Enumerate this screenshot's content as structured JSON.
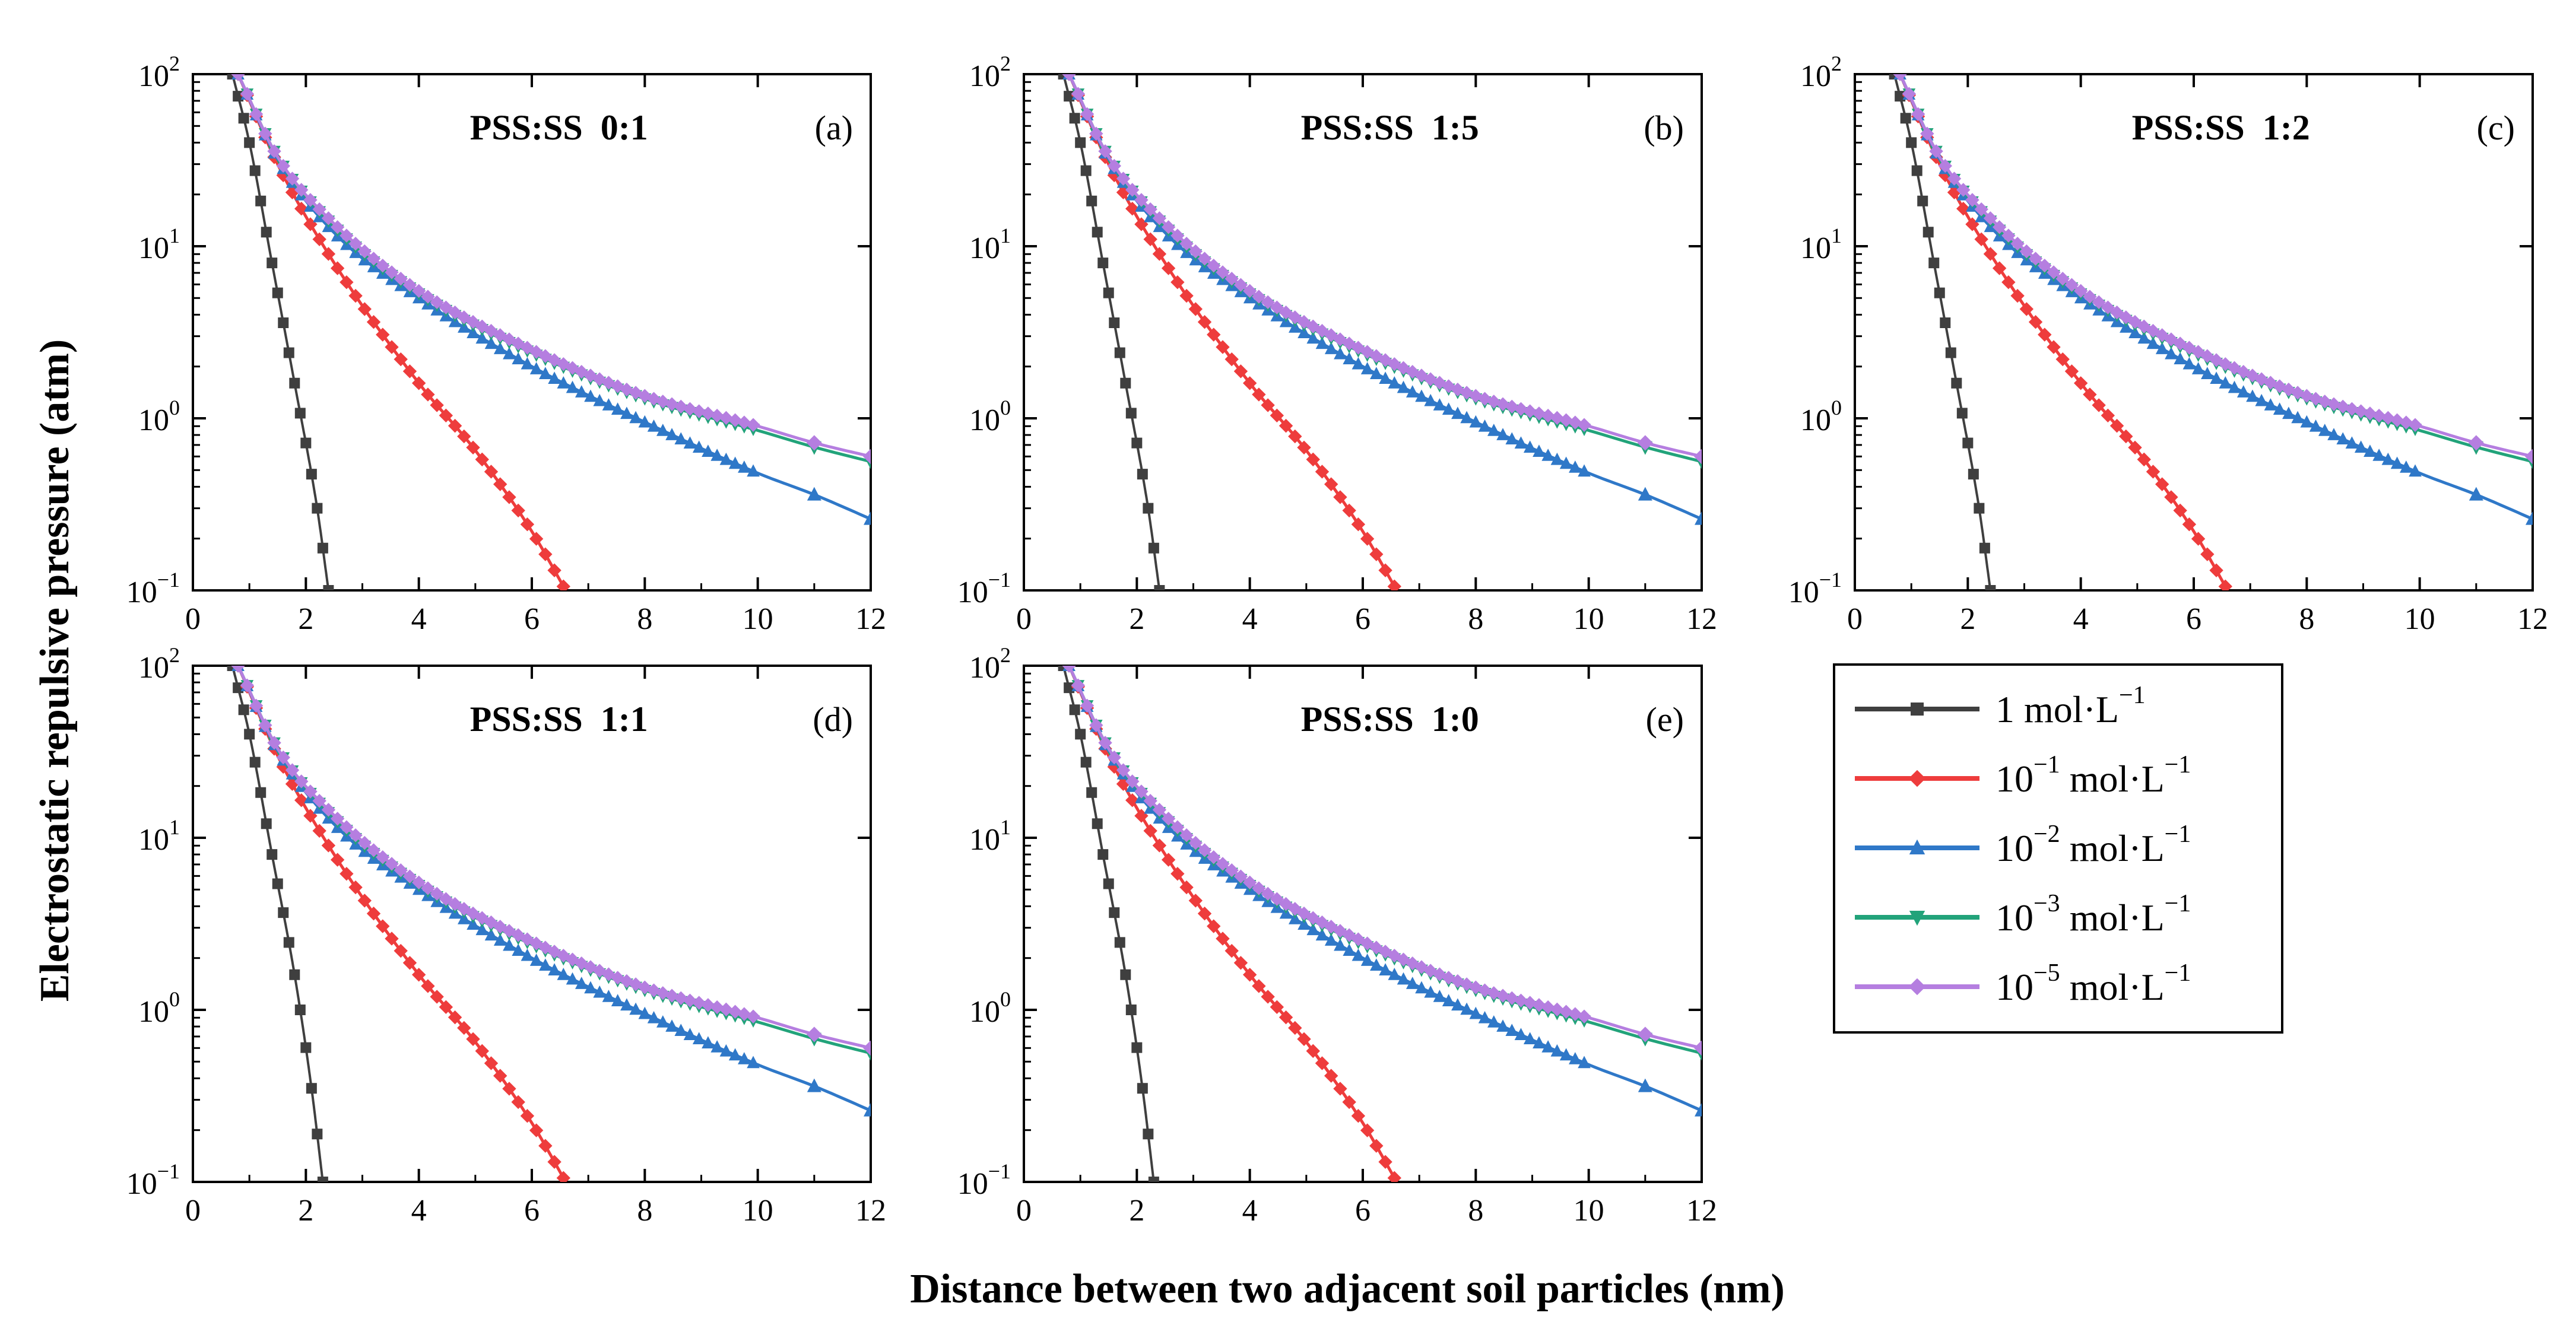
{
  "figure": {
    "ylabel": "Electrostatic repulsive pressure (atm)",
    "xlabel": "Distance between two adjacent soil particles (nm)"
  },
  "axes": {
    "xlim": [
      0,
      12
    ],
    "ylim": [
      0.1,
      100
    ],
    "yscale": "log",
    "xticks": [
      "0",
      "2",
      "4",
      "6",
      "8",
      "10",
      "12"
    ],
    "yticks": [
      {
        "base": "10",
        "exp": "2",
        "value": 100
      },
      {
        "base": "10",
        "exp": "1",
        "value": 10
      },
      {
        "base": "10",
        "exp": "0",
        "value": 1
      },
      {
        "base": "10",
        "exp": "−1",
        "value": 0.1
      }
    ]
  },
  "legend": {
    "placement": "bottom-right",
    "items": [
      {
        "pre": "1",
        "sup": "",
        "unit": " mol·L",
        "unit_sup": "−1",
        "color": "#3f3f3f",
        "marker": "square"
      },
      {
        "pre": "10",
        "sup": "−1",
        "unit": " mol·L",
        "unit_sup": "−1",
        "color": "#ee3c3c",
        "marker": "diamond"
      },
      {
        "pre": "10",
        "sup": "−2",
        "unit": " mol·L",
        "unit_sup": "−1",
        "color": "#2f78c8",
        "marker": "triangle-up"
      },
      {
        "pre": "10",
        "sup": "−3",
        "unit": " mol·L",
        "unit_sup": "−1",
        "color": "#22a37a",
        "marker": "triangle-down"
      },
      {
        "pre": "10",
        "sup": "−5",
        "unit": " mol·L",
        "unit_sup": "−1",
        "color": "#b57ee0",
        "marker": "diamond"
      }
    ]
  },
  "chart_data": [
    {
      "type": "line",
      "panel": "(a)",
      "title": "PSS:SS  0:1",
      "xlabel": "Distance between two adjacent soil particles (nm)",
      "ylabel": "Electrostatic repulsive pressure (atm)",
      "xlim": [
        0,
        12
      ],
      "ylim": [
        0.1,
        100
      ],
      "yscale": "log",
      "series": [
        {
          "name": "1 mol·L−1",
          "x": [
            0.7,
            1.0,
            1.4,
            1.8,
            2.2,
            2.4
          ],
          "y": [
            100,
            40,
            8,
            1.6,
            0.3,
            0.1
          ]
        },
        {
          "name": "10−1 mol·L−1",
          "x": [
            0.8,
            1.5,
            2.5,
            4.0,
            5.0,
            6.0,
            6.6
          ],
          "y": [
            100,
            30,
            8,
            1.6,
            0.65,
            0.22,
            0.1
          ]
        },
        {
          "name": "10−2 mol·L−1",
          "x": [
            0.8,
            1.5,
            2.5,
            4,
            6,
            8,
            10,
            11,
            12
          ],
          "y": [
            100,
            32,
            12,
            5,
            2,
            0.95,
            0.48,
            0.36,
            0.26
          ]
        },
        {
          "name": "10−3 mol·L−1",
          "x": [
            0.8,
            1.5,
            2.5,
            4,
            6,
            8,
            10,
            11,
            12
          ],
          "y": [
            100,
            33,
            13,
            5.3,
            2.4,
            1.3,
            0.85,
            0.68,
            0.56
          ]
        },
        {
          "name": "10−5 mol·L−1",
          "x": [
            0.8,
            1.5,
            2.5,
            4,
            6,
            8,
            10,
            11,
            12
          ],
          "y": [
            100,
            33,
            13.5,
            5.5,
            2.5,
            1.35,
            0.9,
            0.72,
            0.6
          ]
        }
      ]
    },
    {
      "type": "line",
      "panel": "(b)",
      "title": "PSS:SS  1:5",
      "xlabel": "Distance between two adjacent soil particles (nm)",
      "ylabel": "Electrostatic repulsive pressure (atm)",
      "xlim": [
        0,
        12
      ],
      "ylim": [
        0.1,
        100
      ],
      "yscale": "log",
      "series": [
        {
          "name": "1 mol·L−1",
          "x": [
            0.7,
            1.0,
            1.4,
            1.8,
            2.2,
            2.4
          ],
          "y": [
            100,
            40,
            8,
            1.6,
            0.3,
            0.1
          ]
        },
        {
          "name": "10−1 mol·L−1",
          "x": [
            0.8,
            1.5,
            2.5,
            4.0,
            5.0,
            6.0,
            6.6
          ],
          "y": [
            100,
            30,
            8,
            1.6,
            0.65,
            0.22,
            0.1
          ]
        },
        {
          "name": "10−2 mol·L−1",
          "x": [
            0.8,
            1.5,
            2.5,
            4,
            6,
            8,
            10,
            11,
            12
          ],
          "y": [
            100,
            32,
            12,
            5,
            2,
            0.95,
            0.48,
            0.36,
            0.26
          ]
        },
        {
          "name": "10−3 mol·L−1",
          "x": [
            0.8,
            1.5,
            2.5,
            4,
            6,
            8,
            10,
            11,
            12
          ],
          "y": [
            100,
            33,
            13,
            5.3,
            2.4,
            1.3,
            0.85,
            0.68,
            0.56
          ]
        },
        {
          "name": "10−5 mol·L−1",
          "x": [
            0.8,
            1.5,
            2.5,
            4,
            6,
            8,
            10,
            11,
            12
          ],
          "y": [
            100,
            33,
            13.5,
            5.5,
            2.5,
            1.35,
            0.9,
            0.72,
            0.6
          ]
        }
      ]
    },
    {
      "type": "line",
      "panel": "(c)",
      "title": "PSS:SS  1:2",
      "xlabel": "Distance between two adjacent soil particles (nm)",
      "ylabel": "Electrostatic repulsive pressure (atm)",
      "xlim": [
        0,
        12
      ],
      "ylim": [
        0.1,
        100
      ],
      "yscale": "log",
      "series": [
        {
          "name": "1 mol·L−1",
          "x": [
            0.7,
            1.0,
            1.4,
            1.8,
            2.2,
            2.4
          ],
          "y": [
            100,
            40,
            8,
            1.6,
            0.3,
            0.1
          ]
        },
        {
          "name": "10−1 mol·L−1",
          "x": [
            0.8,
            1.5,
            2.5,
            4.0,
            5.0,
            6.0,
            6.6
          ],
          "y": [
            100,
            30,
            8,
            1.6,
            0.65,
            0.22,
            0.1
          ]
        },
        {
          "name": "10−2 mol·L−1",
          "x": [
            0.8,
            1.5,
            2.5,
            4,
            6,
            8,
            10,
            11,
            12
          ],
          "y": [
            100,
            32,
            12,
            5,
            2,
            0.95,
            0.48,
            0.36,
            0.26
          ]
        },
        {
          "name": "10−3 mol·L−1",
          "x": [
            0.8,
            1.5,
            2.5,
            4,
            6,
            8,
            10,
            11,
            12
          ],
          "y": [
            100,
            33,
            13,
            5.3,
            2.4,
            1.3,
            0.85,
            0.68,
            0.56
          ]
        },
        {
          "name": "10−5 mol·L−1",
          "x": [
            0.8,
            1.5,
            2.5,
            4,
            6,
            8,
            10,
            11,
            12
          ],
          "y": [
            100,
            33,
            13.5,
            5.5,
            2.5,
            1.35,
            0.9,
            0.72,
            0.6
          ]
        }
      ]
    },
    {
      "type": "line",
      "panel": "(d)",
      "title": "PSS:SS  1:1",
      "xlabel": "Distance between two adjacent soil particles (nm)",
      "ylabel": "Electrostatic repulsive pressure (atm)",
      "xlim": [
        0,
        12
      ],
      "ylim": [
        0.1,
        100
      ],
      "yscale": "log",
      "series": [
        {
          "name": "1 mol·L−1",
          "x": [
            0.7,
            1.0,
            1.4,
            1.8,
            2.1,
            2.3
          ],
          "y": [
            100,
            40,
            8,
            1.6,
            0.35,
            0.1
          ]
        },
        {
          "name": "10−1 mol·L−1",
          "x": [
            0.8,
            1.5,
            2.5,
            4.0,
            5.0,
            6.0,
            6.6
          ],
          "y": [
            100,
            30,
            8,
            1.6,
            0.65,
            0.22,
            0.1
          ]
        },
        {
          "name": "10−2 mol·L−1",
          "x": [
            0.8,
            1.5,
            2.5,
            4,
            6,
            8,
            10,
            11,
            12
          ],
          "y": [
            100,
            32,
            12,
            5,
            2,
            0.95,
            0.48,
            0.36,
            0.26
          ]
        },
        {
          "name": "10−3 mol·L−1",
          "x": [
            0.8,
            1.5,
            2.5,
            4,
            6,
            8,
            10,
            11,
            12
          ],
          "y": [
            100,
            33,
            13,
            5.3,
            2.4,
            1.3,
            0.85,
            0.68,
            0.56
          ]
        },
        {
          "name": "10−5 mol·L−1",
          "x": [
            0.8,
            1.5,
            2.5,
            4,
            6,
            8,
            10,
            11,
            12
          ],
          "y": [
            100,
            33,
            13.5,
            5.5,
            2.5,
            1.35,
            0.9,
            0.72,
            0.6
          ]
        }
      ]
    },
    {
      "type": "line",
      "panel": "(e)",
      "title": "PSS:SS  1:0",
      "xlabel": "Distance between two adjacent soil particles (nm)",
      "ylabel": "Electrostatic repulsive pressure (atm)",
      "xlim": [
        0,
        12
      ],
      "ylim": [
        0.1,
        100
      ],
      "yscale": "log",
      "series": [
        {
          "name": "1 mol·L−1",
          "x": [
            0.7,
            1.0,
            1.4,
            1.8,
            2.1,
            2.3
          ],
          "y": [
            100,
            40,
            8,
            1.6,
            0.35,
            0.1
          ]
        },
        {
          "name": "10−1 mol·L−1",
          "x": [
            0.8,
            1.5,
            2.5,
            4.0,
            5.0,
            6.0,
            6.6
          ],
          "y": [
            100,
            30,
            8,
            1.6,
            0.65,
            0.22,
            0.1
          ]
        },
        {
          "name": "10−2 mol·L−1",
          "x": [
            0.8,
            1.5,
            2.5,
            4,
            6,
            8,
            10,
            11,
            12
          ],
          "y": [
            100,
            32,
            12,
            5,
            2,
            0.95,
            0.48,
            0.36,
            0.26
          ]
        },
        {
          "name": "10−3 mol·L−1",
          "x": [
            0.8,
            1.5,
            2.5,
            4,
            6,
            8,
            10,
            11,
            12
          ],
          "y": [
            100,
            33,
            13,
            5.3,
            2.4,
            1.3,
            0.85,
            0.68,
            0.56
          ]
        },
        {
          "name": "10−5 mol·L−1",
          "x": [
            0.8,
            1.5,
            2.5,
            4,
            6,
            8,
            10,
            11,
            12
          ],
          "y": [
            100,
            33,
            13.5,
            5.5,
            2.5,
            1.35,
            0.9,
            0.72,
            0.6
          ]
        }
      ]
    }
  ]
}
